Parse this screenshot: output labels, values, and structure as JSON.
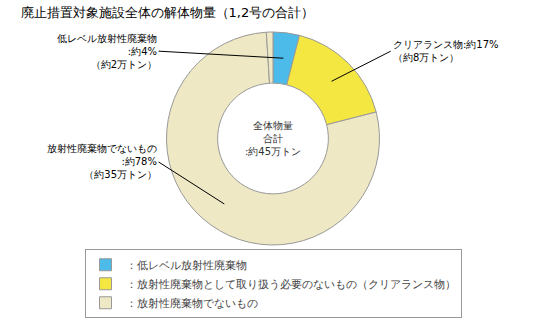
{
  "chart_data": {
    "type": "pie",
    "title": "廃止措置対象施設全体の解体物量（1,2号の合計）",
    "values": [
      4,
      17,
      78,
      1
    ],
    "colors": [
      "#4DBBEA",
      "#F5E742",
      "#EEE8C4",
      "#EEE8C4"
    ],
    "edge_color": "#999999",
    "center_text": "全体物量\n合計\n:約45万トン",
    "annotations": [
      "低レベル放射性廃棄物\n:約4%\n（約2万トン）",
      "クリアランス物:約17%\n（約8万トン）",
      "放射性廃棄物でないもの\n:約78%\n（約35万トン）"
    ],
    "legend_entries": [
      {
        "name": "：低レベル放射性廃棄物",
        "color": "#4DBBEA"
      },
      {
        "name": "：放射性廃棄物として取り扱う必要のないもの（クリアランス物）",
        "color": "#F5E742"
      },
      {
        "name": "：放射性廃棄物でないもの",
        "color": "#EEE8C4"
      }
    ]
  }
}
